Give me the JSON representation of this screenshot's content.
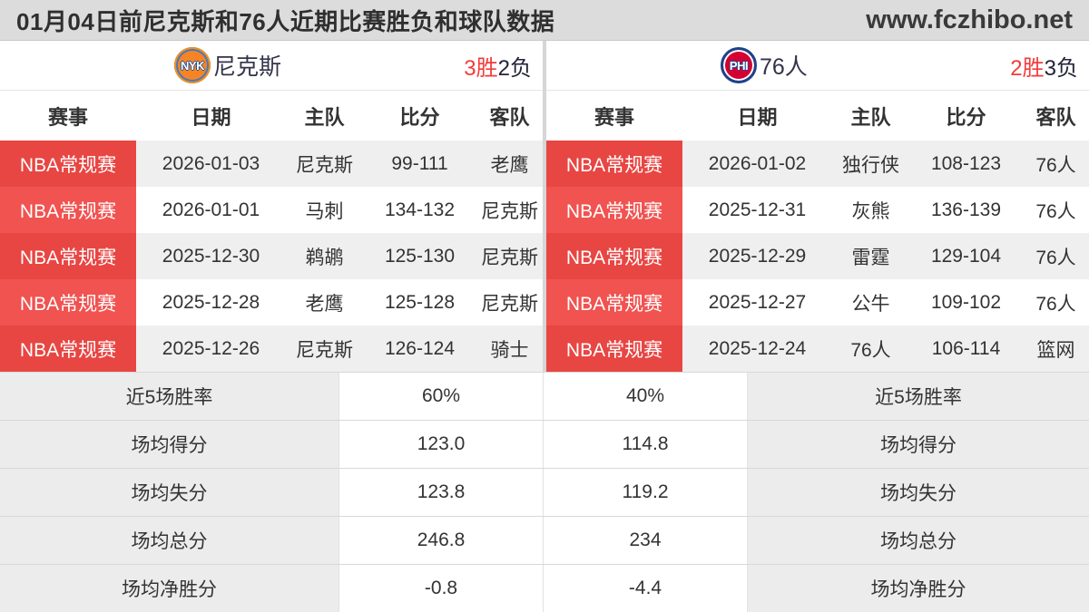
{
  "page": {
    "title": "01月04日前尼克斯和76人近期比赛胜负和球队数据",
    "site": "www.fczhibo.net"
  },
  "columns": [
    "赛事",
    "日期",
    "主队",
    "比分",
    "客队"
  ],
  "stat_labels": {
    "win_rate": "近5场胜率",
    "avg_for": "场均得分",
    "avg_against": "场均失分",
    "avg_total": "场均总分",
    "avg_diff": "场均净胜分"
  },
  "colors": {
    "badge_red": "#f05350",
    "win_red": "#f23c3c",
    "nyk_orange": "#f58426",
    "phi_red": "#d50032",
    "phi_blue": "#1d428a"
  },
  "teams": [
    {
      "name": "尼克斯",
      "logo_text": "NYK",
      "record_win": "3胜",
      "record_loss": "2负",
      "matches": [
        {
          "league": "NBA常规赛",
          "date": "2026-01-03",
          "home": "尼克斯",
          "score": "99-111",
          "away": "老鹰"
        },
        {
          "league": "NBA常规赛",
          "date": "2026-01-01",
          "home": "马刺",
          "score": "134-132",
          "away": "尼克斯"
        },
        {
          "league": "NBA常规赛",
          "date": "2025-12-30",
          "home": "鹈鹕",
          "score": "125-130",
          "away": "尼克斯"
        },
        {
          "league": "NBA常规赛",
          "date": "2025-12-28",
          "home": "老鹰",
          "score": "125-128",
          "away": "尼克斯"
        },
        {
          "league": "NBA常规赛",
          "date": "2025-12-26",
          "home": "尼克斯",
          "score": "126-124",
          "away": "骑士"
        }
      ],
      "stats": {
        "win_rate": "60%",
        "avg_for": "123.0",
        "avg_against": "123.8",
        "avg_total": "246.8",
        "avg_diff": "-0.8"
      }
    },
    {
      "name": "76人",
      "logo_text": "PHI",
      "record_win": "2胜",
      "record_loss": "3负",
      "matches": [
        {
          "league": "NBA常规赛",
          "date": "2026-01-02",
          "home": "独行侠",
          "score": "108-123",
          "away": "76人"
        },
        {
          "league": "NBA常规赛",
          "date": "2025-12-31",
          "home": "灰熊",
          "score": "136-139",
          "away": "76人"
        },
        {
          "league": "NBA常规赛",
          "date": "2025-12-29",
          "home": "雷霆",
          "score": "129-104",
          "away": "76人"
        },
        {
          "league": "NBA常规赛",
          "date": "2025-12-27",
          "home": "公牛",
          "score": "109-102",
          "away": "76人"
        },
        {
          "league": "NBA常规赛",
          "date": "2025-12-24",
          "home": "76人",
          "score": "106-114",
          "away": "篮网"
        }
      ],
      "stats": {
        "win_rate": "40%",
        "avg_for": "114.8",
        "avg_against": "119.2",
        "avg_total": "234",
        "avg_diff": "-4.4"
      }
    }
  ]
}
